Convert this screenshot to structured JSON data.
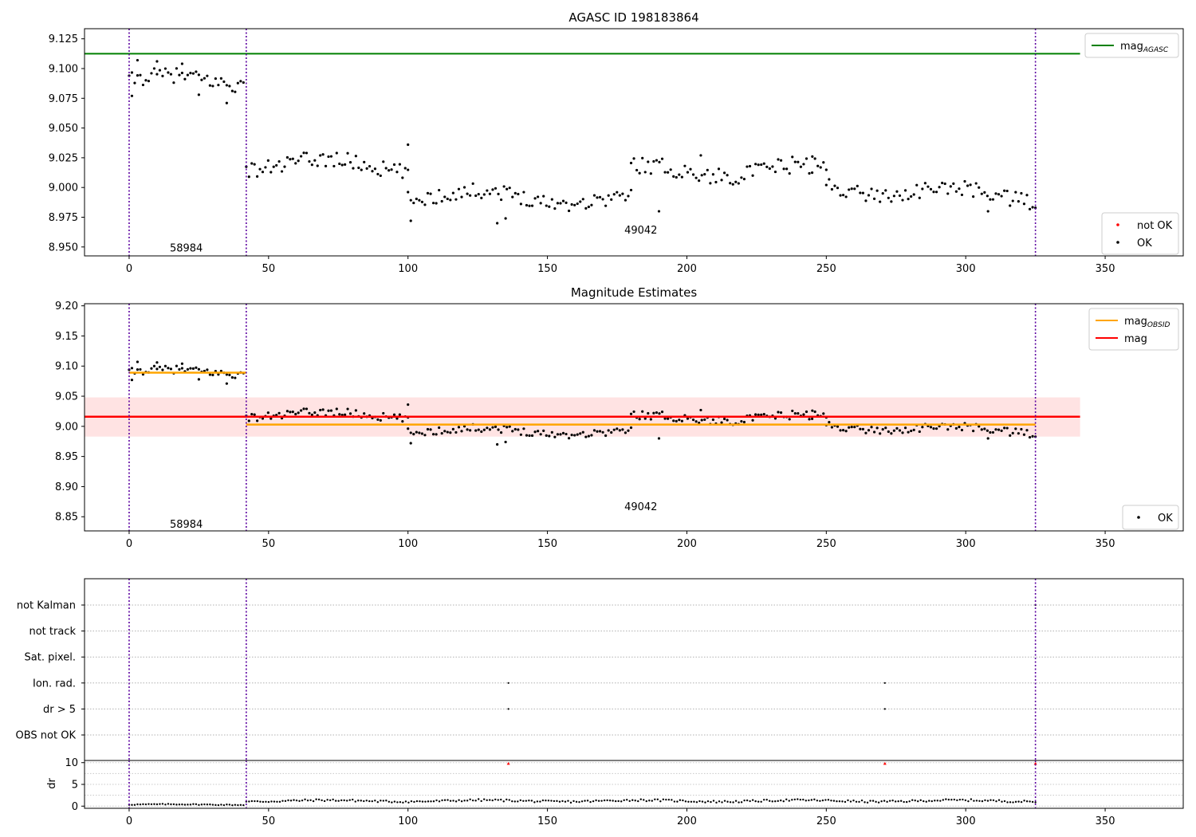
{
  "chart_data": [
    {
      "type": "scatter",
      "title": "AGASC ID 198183864",
      "xlim": [
        -16,
        378
      ],
      "ylim": [
        8.9425,
        9.1335
      ],
      "xticks": [
        0,
        50,
        100,
        150,
        200,
        250,
        300,
        350
      ],
      "yticks": [
        8.95,
        8.975,
        9.0,
        9.025,
        9.05,
        9.075,
        9.1,
        9.125
      ],
      "yticks_label": [
        "8.950",
        "8.975",
        "9.000",
        "9.025",
        "9.050",
        "9.075",
        "9.100",
        "9.125"
      ],
      "obs_boundaries": [
        0,
        42,
        325
      ],
      "obs_labels": [
        {
          "x": 20.5,
          "y": 8.949,
          "text": "58984"
        },
        {
          "x": 183.5,
          "y": 8.964,
          "text": "49042"
        }
      ],
      "hlines": [
        {
          "name": "mag_AGASC",
          "y": 9.1125,
          "x0": -16,
          "x1": 341,
          "color": "#008000"
        }
      ],
      "series": [
        {
          "name": "not OK",
          "color": "#ff0000",
          "marker": "dot",
          "points": []
        },
        {
          "name": "OK",
          "color": "#000000",
          "marker": "dot",
          "segments": [
            {
              "x0": 0,
              "x1": 41,
              "n": 42,
              "mean": 9.09,
              "amp": 0.009
            },
            {
              "x0": 42,
              "x1": 100,
              "n": 60,
              "mean": 9.019,
              "amp": 0.01,
              "trend": -0.002
            },
            {
              "x0": 100,
              "x1": 180,
              "n": 80,
              "mean": 8.992,
              "amp": 0.009,
              "trend": -0.005
            },
            {
              "x0": 180,
              "x1": 250,
              "n": 70,
              "mean": 9.014,
              "amp": 0.01
            },
            {
              "x0": 250,
              "x1": 325,
              "n": 75,
              "mean": 8.996,
              "amp": 0.009,
              "trend": -0.008
            }
          ],
          "outliers": [
            [
              1,
              9.077
            ],
            [
              3,
              9.107
            ],
            [
              10,
              9.106
            ],
            [
              19,
              9.104
            ],
            [
              25,
              9.078
            ],
            [
              35,
              9.071
            ],
            [
              100,
              9.036
            ],
            [
              101,
              8.972
            ],
            [
              132,
              8.97
            ],
            [
              135,
              8.974
            ],
            [
              190,
              8.98
            ],
            [
              205,
              9.027
            ],
            [
              245,
              9.026
            ],
            [
              308,
              8.98
            ]
          ]
        }
      ],
      "legend_top": {
        "placement": "top-right",
        "entries": [
          {
            "label": "mag",
            "sub": "AGASC",
            "color": "#008000"
          }
        ]
      },
      "legend_bottom": {
        "placement": "lower-right",
        "entries": [
          {
            "label": "not OK",
            "color": "#ff0000"
          },
          {
            "label": "OK",
            "color": "#000000"
          }
        ]
      }
    },
    {
      "type": "scatter",
      "title": "Magnitude Estimates",
      "xlim": [
        -16,
        378
      ],
      "ylim": [
        8.8265,
        9.2035
      ],
      "xticks": [
        0,
        50,
        100,
        150,
        200,
        250,
        300,
        350
      ],
      "yticks": [
        8.85,
        8.9,
        8.95,
        9.0,
        9.05,
        9.1,
        9.15,
        9.2
      ],
      "yticks_label": [
        "8.85",
        "8.90",
        "8.95",
        "9.00",
        "9.05",
        "9.10",
        "9.15",
        "9.20"
      ],
      "obs_boundaries": [
        0,
        42,
        325
      ],
      "obs_labels": [
        {
          "x": 20.5,
          "y": 8.837,
          "text": "58984"
        },
        {
          "x": 183.5,
          "y": 8.866,
          "text": "49042"
        }
      ],
      "band": {
        "y0": 8.983,
        "y1": 9.048,
        "x0": -16,
        "x1": 341,
        "color": "#ffcccc"
      },
      "hlines": [
        {
          "name": "mag",
          "y": 9.016,
          "x0": -16,
          "x1": 341,
          "color": "#ff0000"
        },
        {
          "name": "mag_OBSID 58984",
          "y": 9.089,
          "x0": 0,
          "x1": 42,
          "color": "#ffa500"
        },
        {
          "name": "mag_OBSID 49042",
          "y": 9.003,
          "x0": 42,
          "x1": 325,
          "color": "#ffa500"
        }
      ],
      "legend_top": {
        "placement": "top-right",
        "entries": [
          {
            "label": "mag",
            "sub": "OBSID",
            "color": "#ffa500"
          },
          {
            "label": "mag",
            "sub": "",
            "color": "#ff0000"
          }
        ]
      },
      "legend_bottom": {
        "placement": "lower-right",
        "entries": [
          {
            "label": "OK",
            "color": "#000000"
          }
        ]
      }
    },
    {
      "type": "scatter",
      "xlim": [
        -16,
        378
      ],
      "ylabels": [
        "not Kalman",
        "not track",
        "Sat. pixel.",
        "Ion. rad.",
        "dr > 5",
        "OBS not OK"
      ],
      "obs_boundaries": [
        0,
        42,
        325
      ],
      "flags": [
        {
          "row": "Ion. rad.",
          "x": [
            136,
            271
          ]
        },
        {
          "row": "dr > 5",
          "x": [
            136,
            271
          ]
        },
        {
          "row": "not Kalman",
          "x": [
            325
          ]
        }
      ]
    },
    {
      "type": "scatter",
      "ylabel": "dr",
      "xlim": [
        -16,
        378
      ],
      "ylim": [
        -0.5,
        10.5
      ],
      "xticks": [
        0,
        50,
        100,
        150,
        200,
        250,
        300,
        350
      ],
      "yticks": [
        0,
        5,
        10
      ],
      "yticks_label": [
        "0",
        "5",
        "10"
      ],
      "obs_boundaries": [
        0,
        42,
        325
      ],
      "series": [
        {
          "name": "dr",
          "color": "#000000",
          "segments": [
            {
              "x0": 0,
              "x1": 41,
              "n": 42,
              "mean": 0.35,
              "amp": 0.15
            },
            {
              "x0": 42,
              "x1": 325,
              "n": 283,
              "mean": 1.2,
              "amp": 0.35
            }
          ]
        },
        {
          "name": "dr clipped",
          "color": "#ff0000",
          "marker": "triangle",
          "points": [
            [
              136,
              9.8
            ],
            [
              271,
              9.8
            ],
            [
              325,
              9.8
            ]
          ]
        }
      ]
    }
  ]
}
